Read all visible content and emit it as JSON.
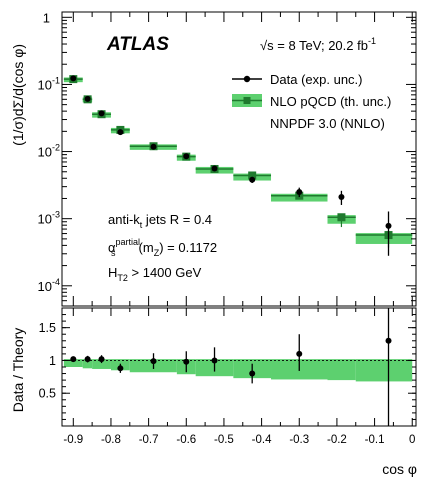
{
  "colors": {
    "band": "#5dd06f",
    "theory_line": "#1f7a2e",
    "theory_marker": "#1f7a2e",
    "data": "#000000",
    "frame": "#000000"
  },
  "annotations": {
    "experiment": "ATLAS",
    "energy": "√s = 8 TeV; 20.2 fb",
    "energy_sup": "-1",
    "jets": "anti-k",
    "jets_sub": "t",
    "jets_rest": " jets R = 0.4",
    "alpha": "α",
    "alpha_sup": "partial",
    "alpha_sub": "s",
    "alpha_mz": "(m",
    "alpha_mz_sub": "Z",
    "alpha_val": ") = 0.1172",
    "ht": "H",
    "ht_sub": "T2",
    "ht_rest": " > 1400 GeV"
  },
  "chart_data": [
    {
      "type": "scatter",
      "ylabel": "(1/σ)dΣ/d(cos φ)",
      "log_y": true,
      "ylim": [
        5e-05,
        1.2
      ],
      "xlim": [
        -0.93,
        0.01
      ],
      "legend_position": "top-right",
      "legend": [
        {
          "label": "Data (exp. unc.)"
        },
        {
          "label": "NLO pQCD (th. unc.)"
        },
        {
          "label": "NNPDF 3.0 (NNLO)"
        }
      ],
      "y_tick_labels": [
        "1",
        "10",
        "10",
        "10",
        "10"
      ],
      "y_tick_sups": [
        "",
        "-1",
        "-2",
        "-3",
        "-4"
      ],
      "series": [
        {
          "name": "Data (exp. unc.)",
          "x": [
            -0.9,
            -0.862,
            -0.825,
            -0.775,
            -0.687,
            -0.6,
            -0.525,
            -0.425,
            -0.3,
            -0.188,
            -0.063
          ],
          "y": [
            0.123,
            0.061,
            0.037,
            0.0195,
            0.0118,
            0.0085,
            0.0056,
            0.0038,
            0.0025,
            0.0021,
            0.00078
          ],
          "yerr_lo": [
            0.004,
            0.002,
            0.0013,
            0.0009,
            0.0006,
            0.0005,
            0.0004,
            0.0004,
            0.0004,
            0.0005,
            0.0005
          ],
          "yerr_hi": [
            0.004,
            0.002,
            0.0013,
            0.0009,
            0.0006,
            0.0005,
            0.0004,
            0.0004,
            0.0004,
            0.0005,
            0.0005
          ]
        },
        {
          "name": "NLO pQCD (th. unc.)",
          "x_lo": [
            -0.925,
            -0.875,
            -0.85,
            -0.8,
            -0.75,
            -0.625,
            -0.575,
            -0.475,
            -0.375,
            -0.225,
            -0.15
          ],
          "x_hi": [
            -0.875,
            -0.85,
            -0.8,
            -0.75,
            -0.625,
            -0.575,
            -0.475,
            -0.375,
            -0.225,
            -0.15,
            0.0
          ],
          "x": [
            -0.9,
            -0.862,
            -0.825,
            -0.775,
            -0.687,
            -0.6,
            -0.525,
            -0.425,
            -0.3,
            -0.188,
            -0.063
          ],
          "y": [
            0.12,
            0.06,
            0.036,
            0.021,
            0.012,
            0.0084,
            0.0055,
            0.0044,
            0.0022,
            0.00105,
            0.00057
          ],
          "band_lo": [
            0.108,
            0.054,
            0.032,
            0.0187,
            0.0106,
            0.0073,
            0.0047,
            0.0037,
            0.0018,
            0.00084,
            0.00042
          ],
          "band_hi": [
            0.127,
            0.064,
            0.0385,
            0.0225,
            0.0128,
            0.009,
            0.0059,
            0.0047,
            0.00235,
            0.00113,
            0.00061
          ],
          "yerr_lo": [
            0,
            0,
            0,
            0,
            0,
            0,
            0,
            0,
            0,
            0.0003,
            0.0002
          ],
          "yerr_hi": [
            0,
            0,
            0,
            0,
            0,
            0,
            0,
            0,
            0,
            0.0001,
            5e-05
          ]
        }
      ]
    },
    {
      "type": "scatter",
      "ylabel": "Data / Theory",
      "xlabel": "cos φ",
      "ylim": [
        0,
        1.8
      ],
      "xlim": [
        -0.93,
        0.01
      ],
      "x_ticks": [
        -0.9,
        -0.8,
        -0.7,
        -0.6,
        -0.5,
        -0.4,
        -0.3,
        -0.2,
        -0.1,
        0
      ],
      "x_tick_labels": [
        "-0.9",
        "-0.8",
        "-0.7",
        "-0.6",
        "-0.5",
        "-0.4",
        "-0.3",
        "-0.2",
        "-0.1",
        "0"
      ],
      "y_ticks": [
        0.5,
        1,
        1.5
      ],
      "y_tick_labels": [
        "0.5",
        "1",
        "1.5"
      ],
      "reference_line": 1,
      "series": [
        {
          "name": "Data",
          "x": [
            -0.9,
            -0.862,
            -0.825,
            -0.775,
            -0.687,
            -0.6,
            -0.525,
            -0.425,
            -0.3,
            -0.188,
            -0.063
          ],
          "y": [
            1.02,
            1.02,
            1.02,
            0.88,
            0.99,
            0.98,
            1.0,
            0.8,
            1.1,
            null,
            1.3
          ],
          "yerr_lo": [
            0.03,
            0.05,
            0.06,
            0.07,
            0.12,
            0.16,
            0.17,
            0.15,
            0.26,
            null,
            1.3
          ],
          "yerr_hi": [
            0.03,
            0.05,
            0.06,
            0.07,
            0.12,
            0.16,
            0.2,
            0.15,
            0.3,
            null,
            0.9
          ]
        },
        {
          "name": "Theory uncertainty",
          "x_lo": [
            -0.925,
            -0.875,
            -0.85,
            -0.8,
            -0.75,
            -0.625,
            -0.575,
            -0.475,
            -0.375,
            -0.225,
            -0.15
          ],
          "x_hi": [
            -0.875,
            -0.85,
            -0.8,
            -0.75,
            -0.625,
            -0.575,
            -0.475,
            -0.375,
            -0.225,
            -0.15,
            0.0
          ],
          "band_lo": [
            0.9,
            0.88,
            0.87,
            0.85,
            0.82,
            0.79,
            0.76,
            0.73,
            0.71,
            0.7,
            0.68
          ],
          "band_hi": [
            1.02,
            1.02,
            1.02,
            1.02,
            1.02,
            1.02,
            1.02,
            1.02,
            1.02,
            1.02,
            1.02
          ]
        }
      ]
    }
  ]
}
